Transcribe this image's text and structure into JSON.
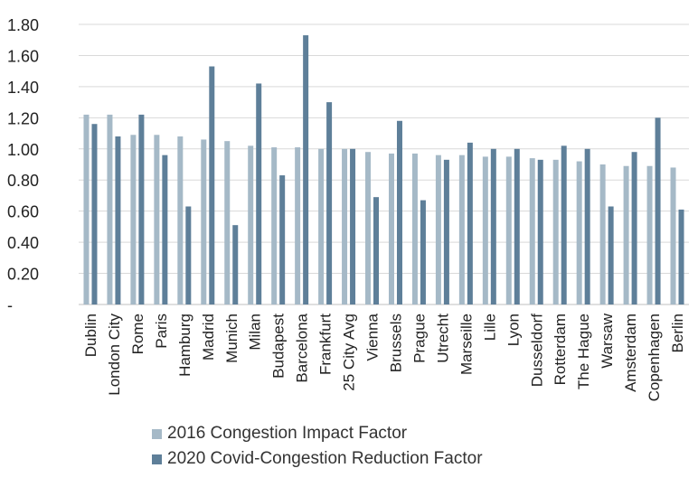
{
  "chart_data": {
    "type": "bar",
    "title": "",
    "xlabel": "",
    "ylabel": "",
    "ylim": [
      0,
      1.8
    ],
    "y_ticks": [
      "-",
      "0.20",
      "0.40",
      "0.60",
      "0.80",
      "1.00",
      "1.20",
      "1.40",
      "1.60",
      "1.80"
    ],
    "grid": true,
    "legend_position": "bottom-left",
    "categories": [
      "Dublin",
      "London City",
      "Rome",
      "Paris",
      "Hamburg",
      "Madrid",
      "Munich",
      "Milan",
      "Budapest",
      "Barcelona",
      "Frankfurt",
      "25 City Avg",
      "Vienna",
      "Brussels",
      "Prague",
      "Utrecht",
      "Marseille",
      "Lille",
      "Lyon",
      "Dusseldorf",
      "Rotterdam",
      "The Hague",
      "Warsaw",
      "Amsterdam",
      "Copenhagen",
      "Berlin"
    ],
    "series": [
      {
        "name": "2016 Congestion Impact Factor",
        "color": "#a5b9c7",
        "values": [
          1.22,
          1.22,
          1.09,
          1.09,
          1.08,
          1.06,
          1.05,
          1.02,
          1.01,
          1.01,
          1.0,
          1.0,
          0.98,
          0.97,
          0.97,
          0.96,
          0.96,
          0.95,
          0.95,
          0.94,
          0.93,
          0.92,
          0.9,
          0.89,
          0.89,
          0.88
        ]
      },
      {
        "name": "2020 Covid-Congestion Reduction Factor",
        "color": "#5e7f99",
        "values": [
          1.16,
          1.08,
          1.22,
          0.96,
          0.63,
          1.53,
          0.51,
          1.42,
          0.83,
          1.73,
          1.3,
          1.0,
          0.69,
          1.18,
          0.67,
          0.93,
          1.04,
          1.0,
          1.0,
          0.93,
          1.02,
          1.0,
          0.63,
          0.98,
          1.2,
          0.61
        ]
      }
    ]
  }
}
